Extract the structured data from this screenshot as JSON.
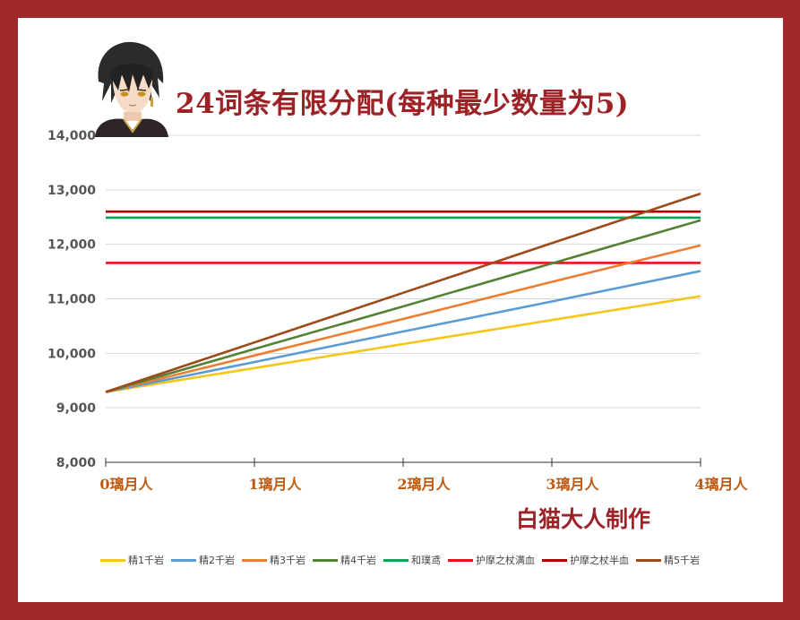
{
  "chart_data": {
    "type": "line",
    "title": "24词条有限分配(每种最少数量为5)",
    "annotation": "白猫大人制作",
    "xlabel": "",
    "ylabel": "",
    "categories": [
      "0璃月人",
      "1璃月人",
      "2璃月人",
      "3璃月人",
      "4璃月人"
    ],
    "ylim": [
      8000,
      14000
    ],
    "yticks": [
      8000,
      9000,
      10000,
      11000,
      12000,
      13000,
      14000
    ],
    "ytick_labels": [
      "8,000",
      "9,000",
      "10,000",
      "11,000",
      "12,000",
      "13,000",
      "14,000"
    ],
    "grid": true,
    "legend_position": "bottom",
    "series": [
      {
        "name": "精1千岩",
        "color": "#f5c518",
        "values": [
          9290,
          9730,
          10170,
          10610,
          11050
        ]
      },
      {
        "name": "精2千岩",
        "color": "#5b9bd5",
        "values": [
          9290,
          9840,
          10400,
          10950,
          11510
        ]
      },
      {
        "name": "精3千岩",
        "color": "#ed7d31",
        "values": [
          9290,
          9960,
          10630,
          11310,
          11980
        ]
      },
      {
        "name": "精4千岩",
        "color": "#548235",
        "values": [
          9290,
          10080,
          10860,
          11650,
          12440
        ]
      },
      {
        "name": "和璞鸢",
        "color": "#00a651",
        "values": [
          12490,
          12490,
          12490,
          12490,
          12490
        ]
      },
      {
        "name": "护摩之杖满血",
        "color": "#e8111a",
        "values": [
          11660,
          11660,
          11660,
          11660,
          11660
        ]
      },
      {
        "name": "护摩之杖半血",
        "color": "#b00000",
        "values": [
          12600,
          12600,
          12600,
          12600,
          12600
        ]
      },
      {
        "name": "精5千岩",
        "color": "#9c4a1a",
        "values": [
          9290,
          10200,
          11110,
          12020,
          12930
        ]
      }
    ],
    "draw_order": [
      4,
      5,
      6,
      0,
      1,
      2,
      3,
      7
    ]
  },
  "style": {
    "frame_color": "#a1282b",
    "title_color": "#9c2226",
    "xtick_color": "#c05a10",
    "ytick_color": "#555555",
    "grid_color": "#d9d9d9"
  },
  "icons": {
    "avatar": "character-portrait-icon"
  }
}
